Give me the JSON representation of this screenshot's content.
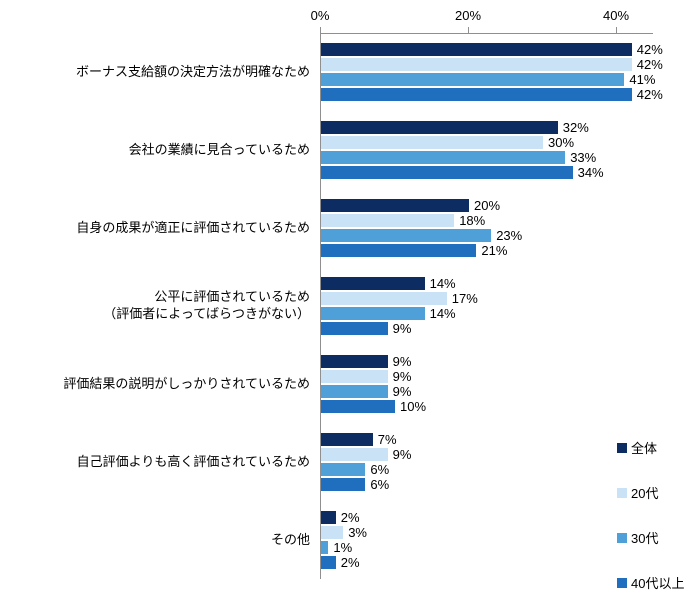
{
  "chart_data": {
    "type": "bar",
    "orientation": "horizontal",
    "title": "",
    "xlabel": "",
    "ylabel": "",
    "value_unit": "%",
    "x_axis": {
      "max": 45,
      "grid": false,
      "position": "top",
      "ticks": [
        {
          "label": "0%",
          "value": 0
        },
        {
          "label": "20%",
          "value": 20
        },
        {
          "label": "40%",
          "value": 40
        }
      ]
    },
    "legend_position": "bottom-right",
    "categories": [
      "ボーナス支給額の決定方法が明確なため",
      "会社の業績に見合っているため",
      "自身の成果が適正に評価されているため",
      "公平に評価されているため\n（評価者によってばらつきがない）",
      "評価結果の説明がしっかりされているため",
      "自己評価よりも高く評価されているため",
      "その他"
    ],
    "series": [
      {
        "name": "全体",
        "color": "#0c2c62",
        "values": [
          42,
          32,
          20,
          14,
          9,
          7,
          2
        ],
        "labels": [
          "42%",
          "32%",
          "20%",
          "14%",
          "9%",
          "7%",
          "2%"
        ]
      },
      {
        "name": "20代",
        "color": "#c9e2f6",
        "values": [
          42,
          30,
          18,
          17,
          9,
          9,
          3
        ],
        "labels": [
          "42%",
          "30%",
          "18%",
          "17%",
          "9%",
          "9%",
          "3%"
        ]
      },
      {
        "name": "30代",
        "color": "#4f9fd8",
        "values": [
          41,
          33,
          23,
          14,
          9,
          6,
          1
        ],
        "labels": [
          "41%",
          "33%",
          "23%",
          "14%",
          "9%",
          "6%",
          "1%"
        ]
      },
      {
        "name": "40代以上",
        "color": "#1f6fbe",
        "values": [
          42,
          34,
          21,
          9,
          10,
          6,
          2
        ],
        "labels": [
          "42%",
          "34%",
          "21%",
          "9%",
          "10%",
          "6%",
          "2%"
        ]
      }
    ]
  }
}
